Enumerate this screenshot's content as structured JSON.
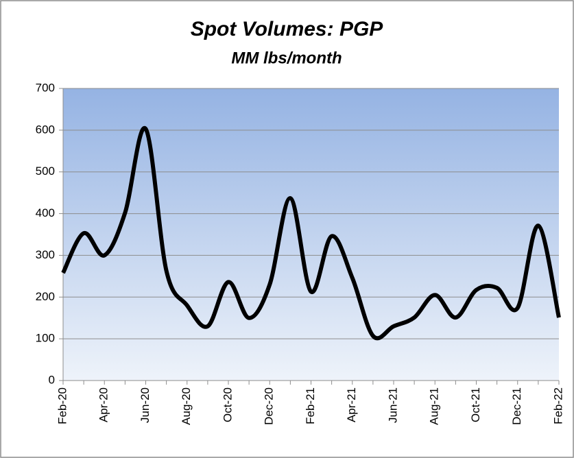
{
  "chart_data": {
    "type": "line",
    "title": "Spot Volumes: PGP",
    "subtitle": "MM lbs/month",
    "categories": [
      "Feb-20",
      null,
      "Apr-20",
      null,
      "Jun-20",
      null,
      "Aug-20",
      null,
      "Oct-20",
      null,
      "Dec-20",
      null,
      "Feb-21",
      null,
      "Apr-21",
      null,
      "Jun-21",
      null,
      "Aug-21",
      null,
      "Oct-21",
      null,
      "Dec-21",
      null,
      "Feb-22"
    ],
    "series": [
      {
        "name": "Spot Volumes",
        "color": "#000000",
        "values": [
          258,
          353,
          300,
          402,
          603,
          263,
          180,
          130,
          236,
          150,
          230,
          437,
          213,
          346,
          246,
          107,
          130,
          151,
          205,
          151,
          217,
          222,
          174,
          371,
          151
        ]
      }
    ],
    "ylim": [
      0,
      700
    ],
    "yticks": [
      0,
      100,
      200,
      300,
      400,
      500,
      600,
      700
    ],
    "grid": true
  }
}
